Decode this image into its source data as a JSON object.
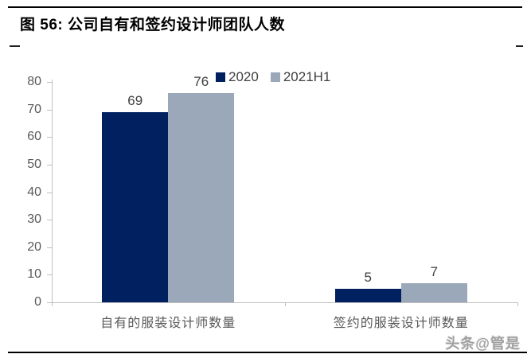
{
  "title": "图 56:  公司自有和签约设计师团队人数",
  "watermark": "头条@管是",
  "colors": {
    "series_2020": "#012060",
    "series_2021h1": "#9aa8ba",
    "axis": "#bfbfbf",
    "y_tick_label": "#595959",
    "value_label": "#404040",
    "legend_text": "#3f3f3f",
    "title_text": "#000000",
    "rule": "#000000",
    "watermark_text": "#a0a0a0"
  },
  "chart_data": {
    "type": "bar",
    "categories": [
      "自有的服装设计师数量",
      "签约的服装设计师数量"
    ],
    "series": [
      {
        "name": "2020",
        "color": "#012060",
        "values": [
          69,
          5
        ]
      },
      {
        "name": "2021H1",
        "color": "#9aa8ba",
        "values": [
          76,
          7
        ]
      }
    ],
    "title": "公司自有和签约设计师团队人数",
    "xlabel": "",
    "ylabel": "",
    "ylim": [
      0,
      80
    ],
    "yticks": [
      0,
      10,
      20,
      30,
      40,
      50,
      60,
      70,
      80
    ],
    "grid": false,
    "legend_position": "top-center",
    "data_labels": true
  }
}
